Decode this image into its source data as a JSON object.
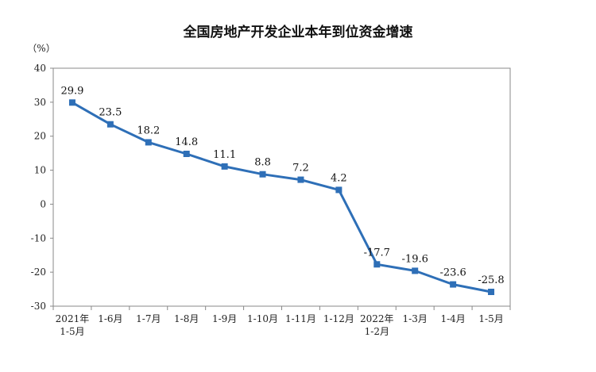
{
  "chart_data": {
    "type": "line",
    "title": "全国房地产开发企业本年到位资金增速",
    "ylabel": "（%）",
    "xlabel": "",
    "ylim": [
      -30,
      40
    ],
    "yticks": [
      40,
      30,
      20,
      10,
      0,
      -10,
      -20,
      -30
    ],
    "categories": [
      [
        "2021年",
        "1-5月"
      ],
      [
        "1-6月"
      ],
      [
        "1-7月"
      ],
      [
        "1-8月"
      ],
      [
        "1-9月"
      ],
      [
        "1-10月"
      ],
      [
        "1-11月"
      ],
      [
        "1-12月"
      ],
      [
        "2022年",
        "1-2月"
      ],
      [
        "1-3月"
      ],
      [
        "1-4月"
      ],
      [
        "1-5月"
      ]
    ],
    "series": [
      {
        "values": [
          29.9,
          23.5,
          18.2,
          14.8,
          11.1,
          8.8,
          7.2,
          4.2,
          -17.7,
          -19.6,
          -23.6,
          -25.8
        ],
        "labels": [
          "29.9",
          "23.5",
          "18.2",
          "14.8",
          "11.1",
          "8.8",
          "7.2",
          "4.2",
          "-17.7",
          "-19.6",
          "-23.6",
          "-25.8"
        ]
      }
    ],
    "grid": false,
    "line_color": "#2e6fb7"
  }
}
